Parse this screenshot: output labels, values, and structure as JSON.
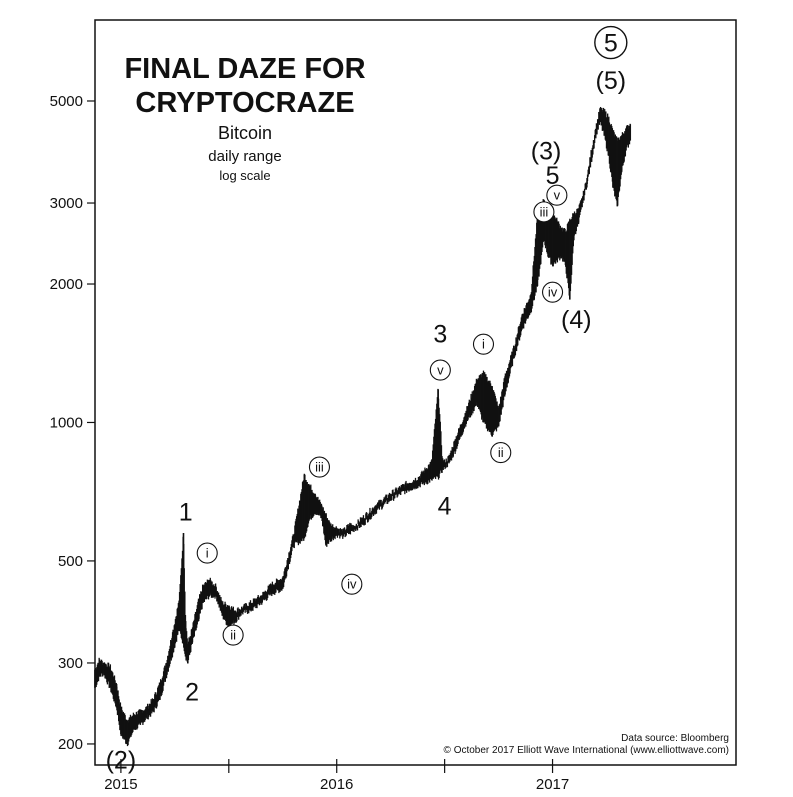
{
  "chart_data": {
    "type": "line",
    "title_line1": "FINAL DAZE FOR",
    "title_line2": "CRYPTOCRAZE",
    "subtitle": "Bitcoin",
    "subtitle2": "daily range",
    "subtitle3": "log scale",
    "y_scale": "log",
    "ylim": [
      180,
      7500
    ],
    "xlim": [
      2014.88,
      2017.85
    ],
    "y_ticks": [
      {
        "value": 200,
        "label": "200"
      },
      {
        "value": 300,
        "label": "300"
      },
      {
        "value": 500,
        "label": "500"
      },
      {
        "value": 1000,
        "label": "1000"
      },
      {
        "value": 2000,
        "label": "2000"
      },
      {
        "value": 3000,
        "label": "3000"
      },
      {
        "value": 5000,
        "label": "5000"
      }
    ],
    "x_ticks": [
      {
        "value": 2015.0,
        "label": "2015"
      },
      {
        "value": 2016.0,
        "label": "2016"
      },
      {
        "value": 2017.0,
        "label": "2017"
      }
    ],
    "x_minor_ticks": [
      2015.5,
      2016.5
    ],
    "series": [
      {
        "x": [
          2014.88,
          2014.9,
          2014.92,
          2014.95,
          2014.98,
          2015.0,
          2015.03,
          2015.06,
          2015.09,
          2015.12,
          2015.15,
          2015.18,
          2015.21,
          2015.24,
          2015.27,
          2015.29,
          2015.3,
          2015.31,
          2015.33,
          2015.36,
          2015.38,
          2015.41,
          2015.44,
          2015.47,
          2015.5,
          2015.53,
          2015.56,
          2015.6,
          2015.65,
          2015.7,
          2015.75,
          2015.8,
          2015.85,
          2015.87,
          2015.9,
          2015.93,
          2015.95,
          2015.97,
          2016.0,
          2016.03,
          2016.06,
          2016.08,
          2016.12,
          2016.18,
          2016.25,
          2016.32,
          2016.38,
          2016.44,
          2016.47,
          2016.49,
          2016.5,
          2016.52,
          2016.55,
          2016.6,
          2016.65,
          2016.68,
          2016.72,
          2016.75,
          2016.78,
          2016.82,
          2016.86,
          2016.9,
          2016.93,
          2016.96,
          2016.98,
          2017.0,
          2017.02,
          2017.04,
          2017.06,
          2017.08,
          2017.1,
          2017.12,
          2017.14,
          2017.16,
          2017.18,
          2017.2,
          2017.22,
          2017.24,
          2017.26,
          2017.28,
          2017.3,
          2017.32,
          2017.34,
          2017.36
        ],
        "high": [
          290,
          305,
          300,
          295,
          270,
          240,
          225,
          232,
          235,
          240,
          250,
          270,
          300,
          350,
          410,
          575,
          370,
          330,
          355,
          410,
          440,
          455,
          440,
          405,
          400,
          390,
          395,
          405,
          420,
          445,
          460,
          570,
          770,
          735,
          700,
          660,
          630,
          600,
          590,
          580,
          600,
          595,
          620,
          660,
          700,
          735,
          760,
          820,
          1180,
          830,
          820,
          840,
          920,
          1060,
          1240,
          1280,
          1200,
          1070,
          1260,
          1450,
          1720,
          1900,
          2800,
          3050,
          2900,
          2850,
          2750,
          2650,
          2600,
          2750,
          2850,
          2900,
          3100,
          3400,
          3900,
          4350,
          4800,
          4750,
          4600,
          4300,
          4100,
          4200,
          4350,
          4450
        ],
        "low": [
          265,
          280,
          285,
          265,
          240,
          210,
          200,
          215,
          220,
          228,
          235,
          250,
          280,
          315,
          355,
          330,
          310,
          300,
          330,
          370,
          405,
          420,
          420,
          380,
          360,
          370,
          385,
          390,
          405,
          425,
          435,
          540,
          560,
          610,
          640,
          620,
          540,
          555,
          570,
          565,
          575,
          585,
          600,
          640,
          680,
          710,
          730,
          750,
          760,
          790,
          800,
          815,
          870,
          1000,
          1100,
          1000,
          940,
          980,
          1150,
          1380,
          1600,
          1750,
          1980,
          2500,
          2300,
          2200,
          2250,
          2300,
          2200,
          1850,
          2550,
          2700,
          3000,
          3300,
          3700,
          4200,
          4500,
          4200,
          3800,
          3250,
          2950,
          3500,
          3900,
          4100
        ]
      }
    ],
    "wave_labels": [
      {
        "text": "(2)",
        "x": 2015.0,
        "y": 185,
        "style": "big"
      },
      {
        "text": "1",
        "x": 2015.3,
        "y": 640,
        "style": "big"
      },
      {
        "text": "2",
        "x": 2015.33,
        "y": 260,
        "style": "big"
      },
      {
        "text": "i",
        "x": 2015.4,
        "y": 520,
        "style": "circle"
      },
      {
        "text": "ii",
        "x": 2015.52,
        "y": 345,
        "style": "circle"
      },
      {
        "text": "iii",
        "x": 2015.92,
        "y": 800,
        "style": "circle"
      },
      {
        "text": "iv",
        "x": 2016.07,
        "y": 445,
        "style": "circle"
      },
      {
        "text": "3",
        "x": 2016.48,
        "y": 1560,
        "style": "big"
      },
      {
        "text": "v",
        "x": 2016.48,
        "y": 1300,
        "style": "circle"
      },
      {
        "text": "4",
        "x": 2016.5,
        "y": 660,
        "style": "big"
      },
      {
        "text": "i",
        "x": 2016.68,
        "y": 1480,
        "style": "circle"
      },
      {
        "text": "ii",
        "x": 2016.76,
        "y": 860,
        "style": "circle"
      },
      {
        "text": "(3)",
        "x": 2016.97,
        "y": 3900,
        "style": "big"
      },
      {
        "text": "5",
        "x": 2017.0,
        "y": 3450,
        "style": "big"
      },
      {
        "text": "v",
        "x": 2017.02,
        "y": 3120,
        "style": "circle"
      },
      {
        "text": "iii",
        "x": 2016.96,
        "y": 2870,
        "style": "circle"
      },
      {
        "text": "iv",
        "x": 2017.0,
        "y": 1920,
        "style": "circle"
      },
      {
        "text": "(4)",
        "x": 2017.11,
        "y": 1680,
        "style": "big"
      },
      {
        "text": "(5)",
        "x": 2017.27,
        "y": 5550,
        "style": "big"
      },
      {
        "text": "5",
        "x": 2017.27,
        "y": 6700,
        "style": "circle-big"
      }
    ],
    "source_line1": "Data source: Bloomberg",
    "source_line2": "© October 2017 Elliott Wave International (www.elliottwave.com)"
  }
}
